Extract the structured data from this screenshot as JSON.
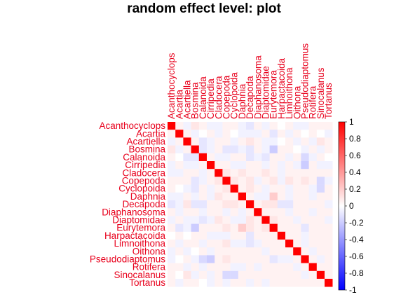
{
  "chart_data": {
    "type": "heatmap",
    "title": "random effect level: plot",
    "labels": [
      "Acanthocyclops",
      "Acartia",
      "Acartiella",
      "Bosmina",
      "Calanoida",
      "Cirripedia",
      "Cladocera",
      "Copepoda",
      "Cyclopoida",
      "Daphnia",
      "Decapoda",
      "Diaphanosoma",
      "Diaptomidae",
      "Eurytemora",
      "Harpactacoida",
      "Limnoithona",
      "Oithona",
      "Pseudodiaptomus",
      "Rotifera",
      "Sinocalanus",
      "Tortanus"
    ],
    "colorbar": {
      "range": [
        -1,
        1
      ],
      "ticks": [
        "1",
        "0.8",
        "0.6",
        "0.4",
        "0.2",
        "0",
        "-0.2",
        "-0.4",
        "-0.6",
        "-0.8",
        "-1"
      ],
      "colors": {
        "negative": "#0000ff",
        "zero": "#ffffff",
        "positive": "#ff0000"
      }
    },
    "values": [
      [
        1,
        0.05,
        -0.05,
        0.1,
        0.05,
        -0.05,
        -0.05,
        0.05,
        0.05,
        -0.05,
        -0.1,
        0.05,
        -0.05,
        0.05,
        0,
        0.05,
        -0.05,
        -0.05,
        0.05,
        0.05,
        0.05
      ],
      [
        0.05,
        1,
        0.05,
        -0.05,
        0,
        0.05,
        -0.05,
        0.05,
        0,
        -0.05,
        -0.05,
        -0.05,
        0.05,
        -0.1,
        0.05,
        -0.05,
        0.05,
        0,
        0.05,
        0,
        -0.05
      ],
      [
        -0.05,
        0.05,
        1,
        0.05,
        -0.1,
        -0.05,
        0.05,
        0.05,
        -0.05,
        0.05,
        0.1,
        0.05,
        -0.05,
        -0.05,
        0,
        0.05,
        -0.05,
        0.05,
        -0.05,
        0.1,
        0.05
      ],
      [
        0.1,
        -0.05,
        0.05,
        1,
        -0.1,
        -0.05,
        0.05,
        -0.1,
        -0.1,
        -0.05,
        -0.1,
        0.05,
        -0.05,
        -0.2,
        0.05,
        0.05,
        0,
        -0.05,
        0.05,
        -0.05,
        0.05
      ],
      [
        0.05,
        0,
        -0.1,
        -0.1,
        1,
        0.05,
        -0.05,
        -0.05,
        0.05,
        0.05,
        -0.1,
        -0.05,
        -0.1,
        0.05,
        0.05,
        -0.05,
        0.05,
        -0.15,
        -0.05,
        0.05,
        0
      ],
      [
        -0.05,
        0.05,
        -0.05,
        -0.05,
        0.05,
        1,
        0.05,
        0.05,
        -0.05,
        -0.05,
        0.05,
        0.05,
        -0.05,
        0.05,
        -0.05,
        0.05,
        -0.05,
        -0.2,
        0.05,
        -0.05,
        -0.05
      ],
      [
        -0.05,
        -0.05,
        0.05,
        0.05,
        -0.05,
        0.05,
        1,
        0.1,
        0.05,
        0.1,
        0.05,
        0.05,
        0.1,
        0.05,
        -0.05,
        0.05,
        0.05,
        0.05,
        0.05,
        0.05,
        0.05
      ],
      [
        0.05,
        0.05,
        0.05,
        -0.1,
        -0.05,
        0.05,
        0.1,
        1,
        0.1,
        0.05,
        0.1,
        -0.05,
        0.05,
        0.1,
        -0.05,
        0.1,
        0.05,
        0.1,
        0.05,
        -0.15,
        -0.05
      ],
      [
        0.05,
        0,
        -0.05,
        -0.1,
        0.05,
        -0.05,
        0.05,
        0.1,
        1,
        0.05,
        0.1,
        0.05,
        -0.05,
        0.05,
        0.05,
        -0.05,
        0.05,
        0.05,
        -0.05,
        -0.15,
        0.05
      ],
      [
        -0.05,
        -0.05,
        0.05,
        -0.05,
        0.05,
        -0.05,
        0.1,
        0.05,
        0.05,
        1,
        0.05,
        -0.05,
        -0.05,
        0.2,
        0.05,
        -0.05,
        0.05,
        0.05,
        -0.05,
        0.05,
        0.05
      ],
      [
        -0.1,
        -0.05,
        0.1,
        -0.1,
        -0.1,
        0.05,
        0.05,
        0.1,
        0.1,
        0.05,
        1,
        0.05,
        0.1,
        0.1,
        -0.1,
        -0.1,
        0.05,
        0.05,
        0.05,
        0.05,
        -0.05
      ],
      [
        0.05,
        -0.05,
        0.05,
        0.05,
        -0.05,
        0.05,
        0.05,
        -0.05,
        0.05,
        -0.05,
        0.05,
        1,
        0.05,
        0.05,
        0.05,
        -0.05,
        0.05,
        0.05,
        -0.05,
        0.05,
        0.05
      ],
      [
        -0.05,
        0.05,
        -0.05,
        -0.05,
        -0.1,
        -0.05,
        0.1,
        0.05,
        -0.05,
        -0.05,
        0.1,
        0.05,
        1,
        0.1,
        0.05,
        0.05,
        -0.05,
        0.05,
        0.05,
        0.05,
        -0.05
      ],
      [
        0.05,
        -0.1,
        -0.05,
        -0.2,
        0.05,
        0.05,
        0.05,
        0.1,
        0.05,
        0.2,
        0.1,
        0.05,
        0.1,
        1,
        0.05,
        0.05,
        0.05,
        -0.1,
        0.05,
        0.05,
        0.05
      ],
      [
        0,
        0.05,
        0,
        0.05,
        0.05,
        -0.05,
        -0.05,
        -0.05,
        0.05,
        0.05,
        -0.1,
        0.05,
        0.05,
        0.05,
        1,
        0.05,
        0.05,
        -0.05,
        0.05,
        0.05,
        0.05
      ],
      [
        0.05,
        -0.05,
        0.05,
        0.05,
        -0.05,
        0.05,
        0.05,
        0.1,
        -0.05,
        -0.05,
        -0.1,
        -0.05,
        0.05,
        0.05,
        0.05,
        1,
        0.05,
        -0.05,
        0.05,
        0.05,
        0.05
      ],
      [
        -0.05,
        0.05,
        -0.05,
        0,
        0.05,
        -0.05,
        0.05,
        0.05,
        0.05,
        0.05,
        0.05,
        0.05,
        -0.05,
        0.05,
        0.05,
        0.05,
        1,
        0.05,
        -0.05,
        0.05,
        0.05
      ],
      [
        -0.05,
        0,
        0.05,
        -0.05,
        -0.15,
        -0.2,
        0.05,
        0.1,
        0.05,
        0.05,
        0.05,
        0.05,
        0.05,
        -0.1,
        -0.05,
        -0.05,
        0.05,
        1,
        0.05,
        -0.05,
        0.05
      ],
      [
        0.05,
        0.05,
        -0.05,
        0.05,
        -0.05,
        0.05,
        0.05,
        0.05,
        -0.05,
        -0.05,
        0.05,
        -0.05,
        0.05,
        0.05,
        0.05,
        0.05,
        -0.05,
        0.05,
        1,
        0.05,
        0.05
      ],
      [
        0.05,
        0,
        0.1,
        -0.05,
        0.05,
        -0.05,
        0.05,
        -0.15,
        -0.15,
        0.05,
        0.05,
        0.05,
        0.05,
        0.05,
        0.05,
        0.05,
        0.05,
        -0.05,
        0.05,
        1,
        0.05
      ],
      [
        0.05,
        -0.05,
        0.05,
        0.05,
        0,
        -0.05,
        0.05,
        -0.05,
        0.05,
        0.05,
        -0.05,
        0.05,
        -0.05,
        0.05,
        0.05,
        0.05,
        0.05,
        0.05,
        0.05,
        0.05,
        1
      ]
    ]
  }
}
